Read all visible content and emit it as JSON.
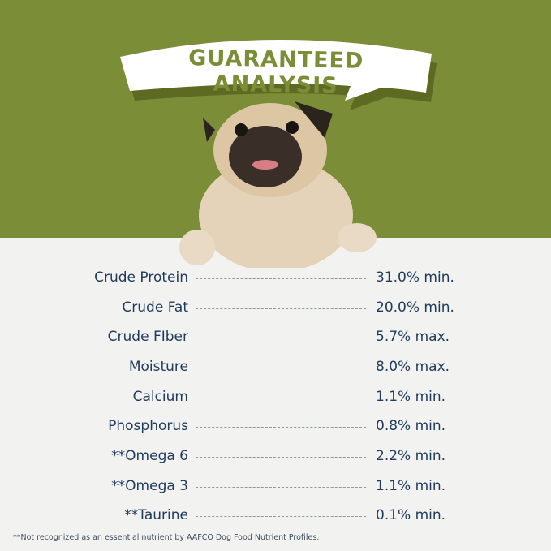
{
  "title": "GUARANTEED ANALYSIS",
  "colors": {
    "background_green": "#7b8d36",
    "text_navy": "#1f3a5a",
    "paper": "#f2f2f0"
  },
  "image": "pug-dog-peeking-over-edge",
  "nutrients": [
    {
      "label": "Crude Protein",
      "value": "31.0% min."
    },
    {
      "label": "Crude Fat",
      "value": "20.0% min."
    },
    {
      "label": "Crude FIber",
      "value": "5.7% max."
    },
    {
      "label": "Moisture",
      "value": "8.0% max."
    },
    {
      "label": "Calcium",
      "value": "1.1% min."
    },
    {
      "label": "Phosphorus",
      "value": "0.8% min."
    },
    {
      "label": "**Omega 6",
      "value": "2.2% min."
    },
    {
      "label": "**Omega 3",
      "value": "1.1% min."
    },
    {
      "label": "**Taurine",
      "value": "0.1% min."
    }
  ],
  "footnote": "**Not recognized as an essential nutrient by AAFCO Dog Food Nutrient Profiles."
}
